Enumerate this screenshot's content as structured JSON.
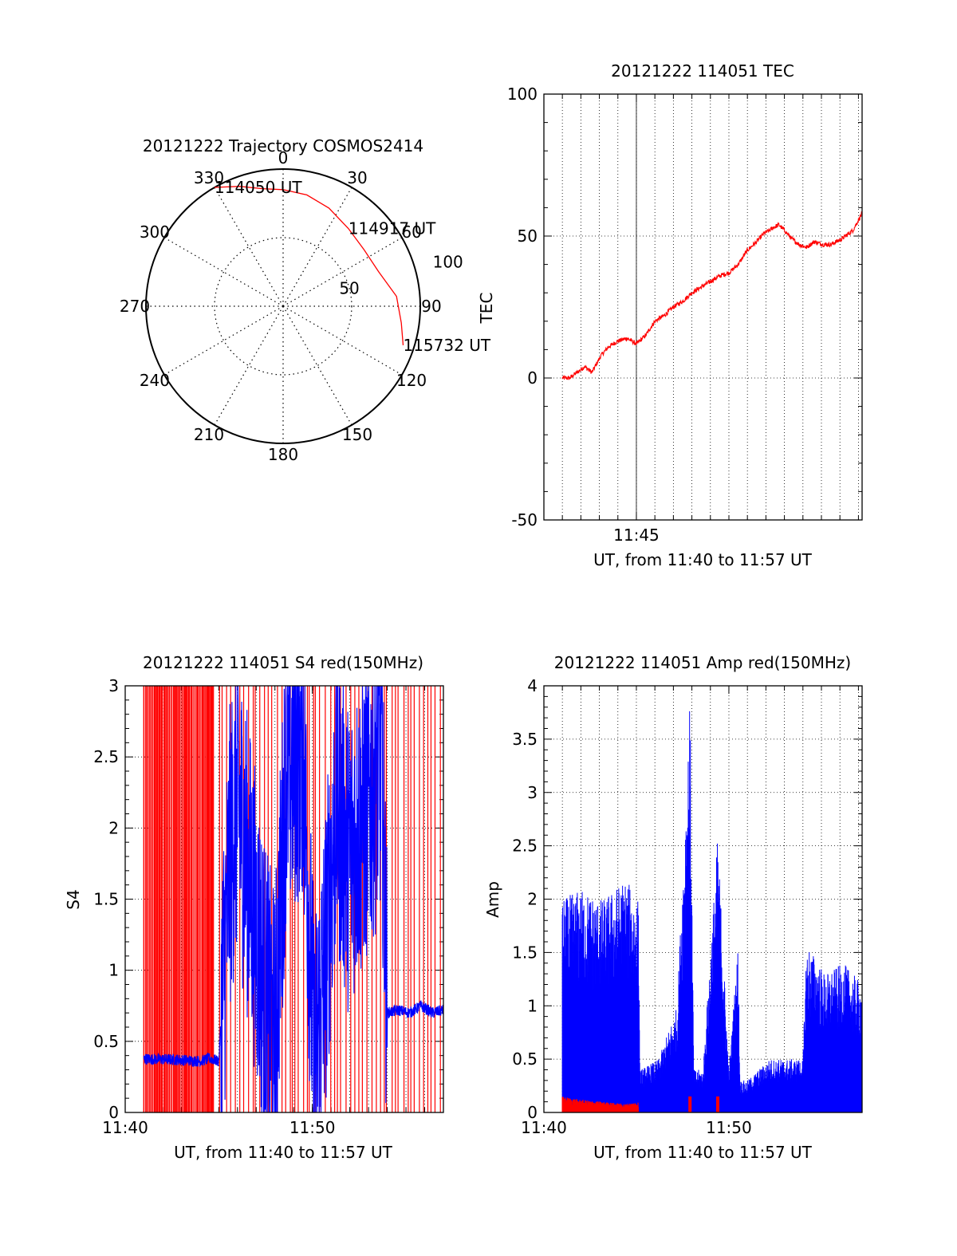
{
  "colors": {
    "axis": "#000000",
    "grid": "#000000",
    "trace_red": "#ff0000",
    "trace_blue": "#0000ff"
  },
  "chart_data": [
    {
      "type": "polar",
      "title": "20121222 Trajectory COSMOS2414",
      "azimuth_labels": [
        "0",
        "30",
        "60",
        "90",
        "120",
        "150",
        "180",
        "210",
        "240",
        "270",
        "300",
        "330"
      ],
      "radial_ticks": [
        50,
        100
      ],
      "trajectory": {
        "points": [
          {
            "az": 330,
            "r": 100
          },
          {
            "az": 340,
            "r": 93
          },
          {
            "az": 350,
            "r": 87
          },
          {
            "az": 0,
            "r": 85
          },
          {
            "az": 12,
            "r": 83
          },
          {
            "az": 25,
            "r": 79
          },
          {
            "az": 40,
            "r": 74
          },
          {
            "az": 55,
            "r": 72
          },
          {
            "az": 70,
            "r": 74
          },
          {
            "az": 85,
            "r": 83
          },
          {
            "az": 98,
            "r": 87
          },
          {
            "az": 108,
            "r": 92
          }
        ],
        "labels": [
          {
            "text": "114050 UT",
            "az": 330,
            "r": 100
          },
          {
            "text": "114917 UT",
            "az": 40,
            "r": 74
          },
          {
            "text": "115732 UT",
            "az": 108,
            "r": 92
          }
        ]
      }
    },
    {
      "type": "line",
      "title": "20121222 114051 TEC",
      "xlabel": "UT, from 11:40 to 11:57 UT",
      "ylabel": "TEC",
      "xlim": [
        11.6667,
        11.9533
      ],
      "ylim": [
        -50,
        100
      ],
      "yticks": [
        -50,
        0,
        50,
        100
      ],
      "xticks": [
        {
          "x": 11.75,
          "label": "11:45"
        }
      ],
      "grid": true,
      "series": [
        {
          "color": "red",
          "x": [
            11.6833,
            11.69,
            11.6967,
            11.7033,
            11.71,
            11.7183,
            11.725,
            11.7333,
            11.7417,
            11.75,
            11.7583,
            11.7667,
            11.775,
            11.7833,
            11.7917,
            11.8,
            11.8083,
            11.8167,
            11.825,
            11.8333,
            11.8417,
            11.85,
            11.8583,
            11.865,
            11.87,
            11.8733,
            11.8783,
            11.8833,
            11.89,
            11.8967,
            11.9033,
            11.91,
            11.9183,
            11.925,
            11.935,
            11.945,
            11.9533
          ],
          "y": [
            0,
            0,
            2,
            4,
            2,
            8,
            11,
            13,
            14,
            12,
            15,
            20,
            22,
            25,
            27,
            30,
            32,
            34,
            36,
            37,
            40,
            45,
            48,
            51,
            52,
            53,
            54,
            52,
            49,
            47,
            46,
            48,
            47,
            47,
            49,
            52,
            58
          ]
        }
      ]
    },
    {
      "type": "line",
      "title": "20121222 114051 S4 red(150MHz)",
      "xlabel": "UT, from 11:40 to 11:57 UT",
      "ylabel": "S4",
      "xlim": [
        11.6667,
        11.95
      ],
      "ylim": [
        0,
        3
      ],
      "yticks": [
        0,
        0.5,
        1,
        1.5,
        2,
        2.5,
        3
      ],
      "xticks": [
        {
          "x": 11.6667,
          "label": "11:40"
        },
        {
          "x": 11.8333,
          "label": "11:50"
        }
      ],
      "grid": true,
      "series": [
        {
          "color": "blue",
          "x": [
            11.6667,
            11.7167,
            11.7333,
            11.7417,
            11.75,
            11.76,
            11.7667,
            11.7783,
            11.7917,
            11.8,
            11.81,
            11.825,
            11.835,
            11.845,
            11.855,
            11.865,
            11.88,
            11.895,
            11.9,
            11.91,
            11.92,
            11.93,
            11.94,
            11.95
          ],
          "y": [
            0.38,
            0.37,
            0.36,
            0.38,
            0.36,
            1.8,
            2.2,
            1.6,
            0.8,
            0.5,
            2.4,
            2.6,
            0.3,
            1.1,
            2.2,
            1.8,
            2.1,
            2.5,
            0.7,
            0.72,
            0.7,
            0.75,
            0.7,
            0.72
          ]
        },
        {
          "color": "red",
          "pattern": "dense vertical spikes between 0 and 3 from 11:40 to 11:57"
        }
      ]
    },
    {
      "type": "line",
      "title": "20121222 114051 Amp red(150MHz)",
      "xlabel": "UT, from 11:40 to 11:57 UT",
      "ylabel": "Amp",
      "xlim": [
        11.6667,
        11.9533
      ],
      "ylim": [
        0,
        4
      ],
      "yticks": [
        0,
        0.5,
        1,
        1.5,
        2,
        2.5,
        3,
        3.5,
        4
      ],
      "xticks": [
        {
          "x": 11.6667,
          "label": "11:40"
        },
        {
          "x": 11.8333,
          "label": "11:50"
        }
      ],
      "grid": true,
      "series": [
        {
          "color": "blue",
          "x": [
            11.6833,
            11.7,
            11.72,
            11.74,
            11.7517,
            11.7533,
            11.77,
            11.7867,
            11.7983,
            11.8017,
            11.81,
            11.8233,
            11.8333,
            11.8417,
            11.8433,
            11.85,
            11.87,
            11.9,
            11.9033,
            11.92,
            11.9367,
            11.9533
          ],
          "y": [
            2.0,
            2.1,
            2.0,
            2.2,
            2.0,
            0.4,
            0.5,
            1.0,
            3.9,
            0.4,
            0.4,
            2.6,
            0.4,
            1.6,
            0.3,
            0.3,
            0.5,
            0.5,
            1.6,
            1.3,
            1.4,
            1.2
          ]
        },
        {
          "color": "red",
          "x": [
            11.6833,
            11.7,
            11.72,
            11.74,
            11.7517,
            11.7533,
            11.7983,
            11.8233,
            11.9533
          ],
          "y": [
            0.15,
            0.12,
            0.1,
            0.08,
            0.1,
            0,
            0.15,
            0.15,
            0
          ]
        }
      ]
    }
  ]
}
